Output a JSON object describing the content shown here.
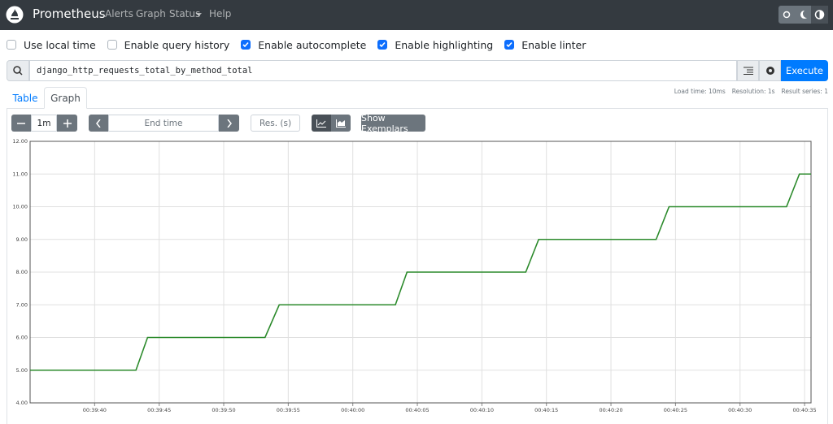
{
  "navbar": {
    "brand": "Prometheus",
    "links": [
      "Alerts",
      "Graph",
      "Status",
      "Help"
    ]
  },
  "options": [
    {
      "label": "Use local time",
      "checked": false
    },
    {
      "label": "Enable query history",
      "checked": false
    },
    {
      "label": "Enable autocomplete",
      "checked": true
    },
    {
      "label": "Enable highlighting",
      "checked": true
    },
    {
      "label": "Enable linter",
      "checked": true
    }
  ],
  "query": {
    "expression": "django_http_requests_total_by_method_total",
    "execute": "Execute"
  },
  "stats": [
    "Load time: 10ms",
    "Resolution: 1s",
    "Result series: 1"
  ],
  "tabs": [
    {
      "label": "Table",
      "active": false
    },
    {
      "label": "Graph",
      "active": true
    }
  ],
  "controls": {
    "range": "1m",
    "end_time": "End time",
    "resolution": "Res. (s)",
    "exemplars": "Show Exemplars"
  },
  "chart_data": {
    "type": "line",
    "color": "#2b8a2b",
    "grid": true,
    "x": [
      "00:39:35",
      "00:39:43.2",
      "00:39:44.1",
      "00:39:53.2",
      "00:39:54.3",
      "00:40:03.3",
      "00:40:04.2",
      "00:40:13.4",
      "00:40:14.4",
      "00:40:23.5",
      "00:40:24.5",
      "00:40:33.6",
      "00:40:34.6",
      "00:40:35.5"
    ],
    "values": [
      5,
      5,
      6,
      6,
      7,
      7,
      8,
      8,
      9,
      9,
      10,
      10,
      11,
      11
    ],
    "xlim": [
      "00:39:35",
      "00:40:35.5"
    ],
    "xticks": [
      "00:39:40",
      "00:39:45",
      "00:39:50",
      "00:39:55",
      "00:40:00",
      "00:40:05",
      "00:40:10",
      "00:40:15",
      "00:40:20",
      "00:40:25",
      "00:40:30",
      "00:40:35"
    ],
    "ylim": [
      4,
      12
    ],
    "yticks": [
      {
        "value": 4,
        "label": "4.00"
      },
      {
        "value": 5,
        "label": "5.00"
      },
      {
        "value": 6,
        "label": "6.00"
      },
      {
        "value": 7,
        "label": "7.00"
      },
      {
        "value": 8,
        "label": "8.00"
      },
      {
        "value": 9,
        "label": "9.00"
      },
      {
        "value": 10,
        "label": "10.00"
      },
      {
        "value": 11,
        "label": "11.00"
      },
      {
        "value": 12,
        "label": "12.00"
      }
    ]
  }
}
